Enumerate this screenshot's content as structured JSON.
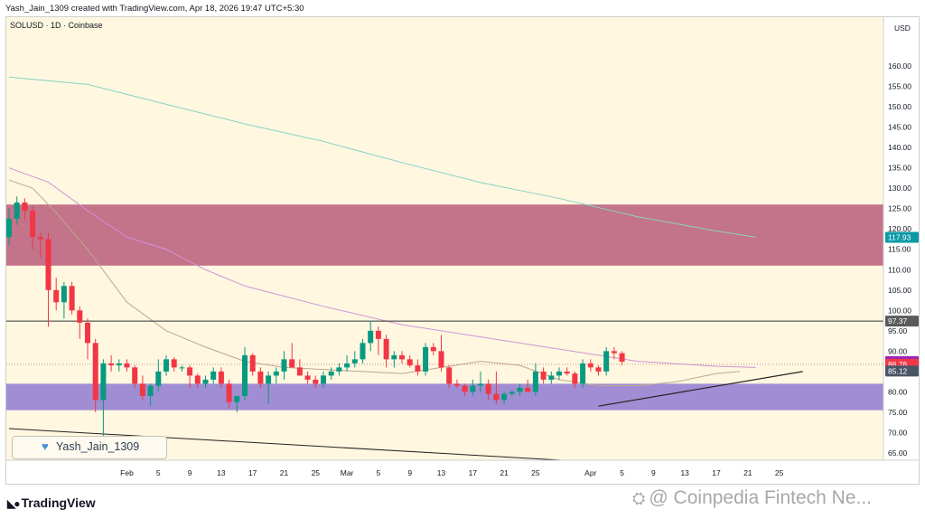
{
  "header": {
    "created_text": "Yash_Jain_1309 created with TradingView.com, Apr 18, 2026 19:47 UTC+5:30"
  },
  "chart_info": {
    "symbol_line": "SOLUSD · 1D · Coinbase",
    "currency": "USD"
  },
  "watermark": {
    "text": "Yash_Jain_1309",
    "heart_icon": "heart-icon"
  },
  "footer": {
    "logo_text": "TradingView",
    "logo_icon": "tradingview-logo-icon",
    "source_text": "@ Coinpedia Fintech Ne...",
    "source_icon": "coinpedia-logo-icon"
  },
  "colors": {
    "up": "#089981",
    "down": "#f23645",
    "background": "#fff7e0",
    "resistance_zone": "#b85c7a",
    "support_zone": "#8f7ad0",
    "ma_fast": "#bda98c",
    "ma_mid": "#cf94d6",
    "ma_slow": "#87d3c6"
  },
  "chart_data": {
    "type": "candlestick",
    "title": "SOLUSD · 1D · Coinbase",
    "ylim": [
      57,
      172
    ],
    "y_ticks": [
      60,
      65,
      70,
      75,
      80,
      85,
      90,
      95,
      100,
      105,
      110,
      115,
      120,
      125,
      130,
      135,
      140,
      145,
      150,
      155,
      160
    ],
    "y_tick_labels": [
      "60.00",
      "65.00",
      "70.00",
      "75.00",
      "80.00",
      "85.00",
      "90.00",
      "95.00",
      "100.00",
      "105.00",
      "110.00",
      "115.00",
      "120.00",
      "125.00",
      "130.00",
      "135.00",
      "140.00",
      "145.00",
      "150.00",
      "155.00",
      "160.00"
    ],
    "x_labels": [
      {
        "label": "Feb",
        "day": 15
      },
      {
        "label": "5",
        "day": 19
      },
      {
        "label": "9",
        "day": 23
      },
      {
        "label": "13",
        "day": 27
      },
      {
        "label": "17",
        "day": 31
      },
      {
        "label": "21",
        "day": 35
      },
      {
        "label": "25",
        "day": 39
      },
      {
        "label": "Mar",
        "day": 43
      },
      {
        "label": "5",
        "day": 47
      },
      {
        "label": "9",
        "day": 51
      },
      {
        "label": "13",
        "day": 55
      },
      {
        "label": "17",
        "day": 59
      },
      {
        "label": "21",
        "day": 63
      },
      {
        "label": "25",
        "day": 67
      },
      {
        "label": "Apr",
        "day": 74
      },
      {
        "label": "5",
        "day": 78
      },
      {
        "label": "9",
        "day": 82
      },
      {
        "label": "13",
        "day": 86
      },
      {
        "label": "17",
        "day": 90
      },
      {
        "label": "21",
        "day": 94
      },
      {
        "label": "25",
        "day": 98
      }
    ],
    "ohlc": [
      [
        118,
        125,
        116,
        122.5
      ],
      [
        122.5,
        128,
        121,
        126.5
      ],
      [
        126.5,
        127.5,
        122,
        124.5
      ],
      [
        124.5,
        125.5,
        115,
        118
      ],
      [
        118,
        119,
        113,
        117.5
      ],
      [
        117.5,
        119,
        96,
        105
      ],
      [
        105,
        108,
        100,
        102
      ],
      [
        102,
        107,
        98,
        106
      ],
      [
        106,
        107,
        99,
        100
      ],
      [
        100,
        101,
        93,
        97
      ],
      [
        97,
        98,
        88,
        92
      ],
      [
        92,
        93,
        75,
        78
      ],
      [
        78,
        88,
        67.5,
        87
      ],
      [
        87,
        89,
        85,
        86.5
      ],
      [
        86.5,
        88,
        85,
        87
      ],
      [
        87,
        88,
        85,
        86
      ],
      [
        86,
        86.5,
        81,
        82
      ],
      [
        82,
        84,
        78,
        79
      ],
      [
        79,
        82,
        76.5,
        81.5
      ],
      [
        81.5,
        88,
        80,
        85
      ],
      [
        85,
        89,
        84,
        88
      ],
      [
        88,
        88.5,
        85,
        86
      ],
      [
        86,
        86.5,
        85,
        86
      ],
      [
        86,
        86.5,
        81,
        84
      ],
      [
        84,
        84.5,
        81,
        82
      ],
      [
        82,
        84,
        81,
        83
      ],
      [
        83,
        86,
        82,
        85
      ],
      [
        85,
        86,
        81,
        82
      ],
      [
        82,
        83,
        76,
        77.5
      ],
      [
        77.5,
        79,
        75,
        79
      ],
      [
        79,
        91,
        78,
        89
      ],
      [
        89,
        89.5,
        84,
        85
      ],
      [
        85,
        86,
        81,
        82
      ],
      [
        82,
        85,
        77,
        84
      ],
      [
        84,
        86,
        82,
        85
      ],
      [
        85,
        90,
        83,
        88
      ],
      [
        88,
        92,
        86,
        86
      ],
      [
        86,
        88,
        84,
        84
      ],
      [
        84,
        85,
        82,
        83
      ],
      [
        83,
        84,
        81,
        82
      ],
      [
        82,
        85,
        81,
        84
      ],
      [
        84,
        86,
        83,
        85
      ],
      [
        85,
        87,
        84,
        86
      ],
      [
        86,
        89,
        85,
        87
      ],
      [
        87,
        90,
        86,
        88
      ],
      [
        88,
        93,
        87,
        92
      ],
      [
        92,
        97.5,
        90,
        95
      ],
      [
        95,
        96,
        89,
        93
      ],
      [
        93,
        94,
        86,
        88
      ],
      [
        88,
        90,
        86,
        89
      ],
      [
        89,
        90,
        87,
        88
      ],
      [
        88,
        89,
        86,
        86.5
      ],
      [
        86.5,
        88,
        84,
        85
      ],
      [
        85,
        92,
        84,
        91
      ],
      [
        91,
        92,
        89,
        90
      ],
      [
        90,
        94,
        85,
        86
      ],
      [
        86,
        86.5,
        81,
        82
      ],
      [
        82,
        83,
        81,
        81.5
      ],
      [
        81.5,
        82,
        79,
        80
      ],
      [
        80,
        83,
        79,
        81.5
      ],
      [
        81.5,
        85,
        80,
        82
      ],
      [
        82,
        83,
        78,
        79.5
      ],
      [
        79.5,
        85,
        77,
        78
      ],
      [
        78,
        80,
        77,
        79.5
      ],
      [
        79.5,
        80.5,
        79,
        80
      ],
      [
        80,
        82,
        79,
        81
      ],
      [
        81,
        83,
        80,
        80
      ],
      [
        80,
        87,
        79,
        85
      ],
      [
        85,
        86,
        82,
        83
      ],
      [
        83,
        85,
        82,
        84
      ],
      [
        84,
        86,
        83,
        85
      ],
      [
        85,
        86,
        84,
        84.5
      ],
      [
        84.5,
        85,
        81,
        82
      ],
      [
        82,
        88,
        81,
        87
      ],
      [
        87,
        88,
        85,
        86
      ],
      [
        86,
        86.5,
        84,
        85
      ],
      [
        85,
        91,
        84,
        90
      ],
      [
        90,
        91,
        88,
        89.5
      ],
      [
        89.5,
        90,
        86.5,
        87.4
      ]
    ],
    "x_start_index": 0,
    "ma_slow": {
      "name": "",
      "points": [
        [
          0,
          157.3
        ],
        [
          10,
          155.5
        ],
        [
          20,
          150.6
        ],
        [
          30,
          145.8
        ],
        [
          40,
          141.5
        ],
        [
          50,
          136.3
        ],
        [
          60,
          131.4
        ],
        [
          70,
          127.5
        ],
        [
          80,
          123
        ],
        [
          90,
          119.5
        ],
        [
          95,
          118
        ]
      ]
    },
    "ma_mid": {
      "name": "",
      "points": [
        [
          0,
          135
        ],
        [
          5,
          131.5
        ],
        [
          10,
          124.5
        ],
        [
          15,
          118
        ],
        [
          20,
          115
        ],
        [
          25,
          110
        ],
        [
          30,
          106
        ],
        [
          40,
          101
        ],
        [
          50,
          96.5
        ],
        [
          60,
          93.5
        ],
        [
          70,
          90.5
        ],
        [
          80,
          87.5
        ],
        [
          90,
          86.3
        ],
        [
          95,
          86
        ]
      ]
    },
    "ma_fast": {
      "name": "",
      "points": [
        [
          0,
          132
        ],
        [
          3,
          130
        ],
        [
          6,
          124
        ],
        [
          10,
          115
        ],
        [
          15,
          102
        ],
        [
          20,
          95
        ],
        [
          25,
          91
        ],
        [
          30,
          87.5
        ],
        [
          35,
          86
        ],
        [
          40,
          85.5
        ],
        [
          45,
          85
        ],
        [
          50,
          84.5
        ],
        [
          55,
          86
        ],
        [
          60,
          87.5
        ],
        [
          65,
          86.5
        ],
        [
          70,
          83
        ],
        [
          75,
          81.5
        ],
        [
          80,
          81.5
        ],
        [
          85,
          82.5
        ],
        [
          90,
          84.5
        ],
        [
          93,
          85
        ]
      ]
    },
    "resistance_zone": [
      111,
      126
    ],
    "support_zone": [
      75.5,
      82
    ],
    "horizontal_line": 97.37,
    "dotted_line": 86.76,
    "trendline_upper": {
      "points": [
        [
          75,
          76.5
        ],
        [
          101,
          85
        ]
      ]
    },
    "trendline_lower": {
      "points": [
        [
          0,
          71
        ],
        [
          113,
          58.5
        ]
      ]
    },
    "price_labels": [
      {
        "value": 117.93,
        "text": "117.93",
        "color": "#0b9aa5"
      },
      {
        "value": 97.37,
        "text": "97.37",
        "color": "#5a5a5a"
      },
      {
        "value": 87.43,
        "text": "87.43",
        "color": "#9c27b0"
      },
      {
        "value": 86.76,
        "text": "86.76",
        "color": "#f23645"
      },
      {
        "value": 85.12,
        "text": "85.12",
        "color": "#4a5568"
      }
    ],
    "grid": false
  }
}
